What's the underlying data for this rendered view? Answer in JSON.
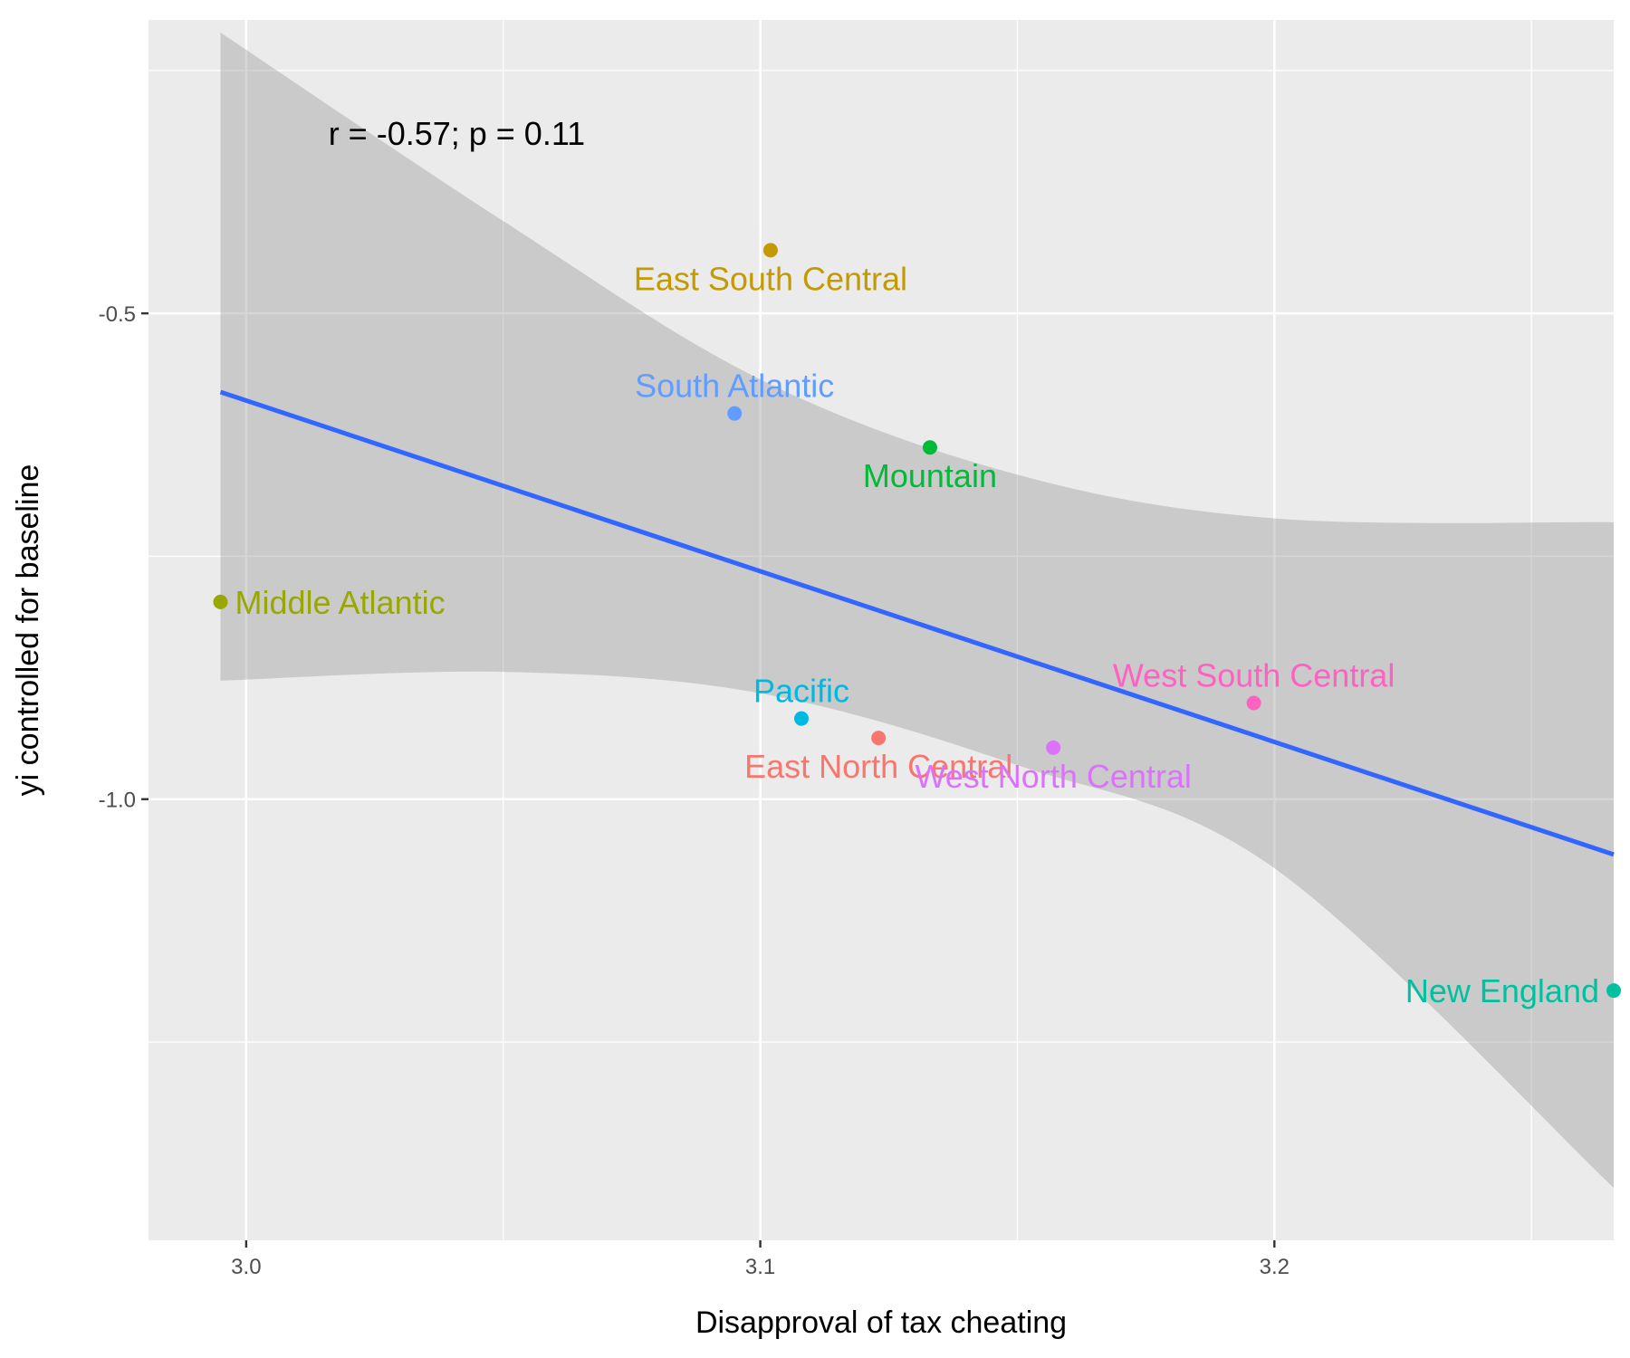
{
  "chart_data": {
    "type": "scatter",
    "title": "",
    "xlabel": "Disapproval of tax cheating",
    "ylabel": "yi controlled for baseline",
    "xlim": [
      2.981,
      3.266
    ],
    "ylim": [
      -1.454,
      -0.198
    ],
    "x_ticks": [
      3.0,
      3.1,
      3.2
    ],
    "x_tick_labels": [
      "3.0",
      "3.1",
      "3.2"
    ],
    "y_ticks": [
      -0.5,
      -1.0
    ],
    "y_tick_labels": [
      "-0.5",
      "-1.0"
    ],
    "grid": true,
    "annotation": "r = -0.57; p = 0.11",
    "points": [
      {
        "label": "East South Central",
        "x": 3.102,
        "y": -0.435,
        "color": "#C49A00",
        "label_pos": "below"
      },
      {
        "label": "South Atlantic",
        "x": 3.095,
        "y": -0.603,
        "color": "#619CFF",
        "label_pos": "above"
      },
      {
        "label": "Mountain",
        "x": 3.133,
        "y": -0.638,
        "color": "#00BA38",
        "label_pos": "below"
      },
      {
        "label": "Middle Atlantic",
        "x": 2.995,
        "y": -0.797,
        "color": "#99A800",
        "label_pos": "right"
      },
      {
        "label": "Pacific",
        "x": 3.108,
        "y": -0.917,
        "color": "#00B9E3",
        "label_pos": "above"
      },
      {
        "label": "East North Central",
        "x": 3.123,
        "y": -0.937,
        "color": "#F8766D",
        "label_pos": "below"
      },
      {
        "label": "West North Central",
        "x": 3.157,
        "y": -0.947,
        "color": "#DB72FB",
        "label_pos": "below"
      },
      {
        "label": "West South Central",
        "x": 3.196,
        "y": -0.901,
        "color": "#FF61C3",
        "label_pos": "above"
      },
      {
        "label": "New England",
        "x": 3.266,
        "y": -1.197,
        "color": "#00C19F",
        "label_pos": "left"
      }
    ],
    "fit_line": {
      "color": "#3366FF",
      "x": [
        2.995,
        3.266
      ],
      "y": [
        -0.581,
        -1.057
      ]
    },
    "confidence_band": {
      "color": "#999999",
      "x": [
        2.995,
        3.05,
        3.1,
        3.15,
        3.2,
        3.266
      ],
      "upper": [
        -0.211,
        -0.405,
        -0.568,
        -0.666,
        -0.711,
        -0.715
      ],
      "lower": [
        -0.878,
        -0.869,
        -0.891,
        -0.965,
        -1.071,
        -1.4
      ]
    }
  }
}
